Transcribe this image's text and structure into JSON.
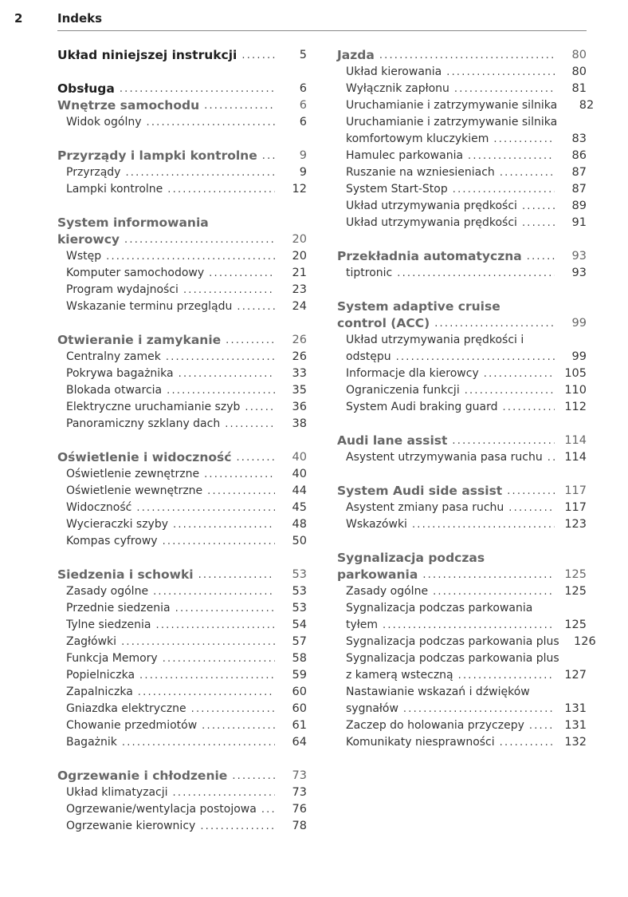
{
  "header": {
    "page_number": "2",
    "title": "Indeks"
  },
  "left": [
    {
      "type": "h1",
      "lines": [
        "Układ niniejszej instrukcji"
      ],
      "page": "5"
    },
    {
      "type": "gap"
    },
    {
      "type": "h1",
      "lines": [
        "Obsługa"
      ],
      "page": "6"
    },
    {
      "type": "h2",
      "lines": [
        "Wnętrze samochodu"
      ],
      "page": "6"
    },
    {
      "type": "item",
      "lines": [
        "Widok ogólny"
      ],
      "page": "6"
    },
    {
      "type": "gap"
    },
    {
      "type": "h2",
      "lines": [
        "Przyrządy i lampki kontrolne"
      ],
      "page": "9"
    },
    {
      "type": "item",
      "lines": [
        "Przyrządy"
      ],
      "page": "9"
    },
    {
      "type": "item",
      "lines": [
        "Lampki kontrolne"
      ],
      "page": "12"
    },
    {
      "type": "gap"
    },
    {
      "type": "h2",
      "lines": [
        "System informowania",
        "kierowcy"
      ],
      "page": "20"
    },
    {
      "type": "item",
      "lines": [
        "Wstęp"
      ],
      "page": "20"
    },
    {
      "type": "item",
      "lines": [
        "Komputer samochodowy"
      ],
      "page": "21"
    },
    {
      "type": "item",
      "lines": [
        "Program wydajności"
      ],
      "page": "23"
    },
    {
      "type": "item",
      "lines": [
        "Wskazanie terminu przeglądu"
      ],
      "page": "24"
    },
    {
      "type": "gap"
    },
    {
      "type": "h2",
      "lines": [
        "Otwieranie i zamykanie"
      ],
      "page": "26"
    },
    {
      "type": "item",
      "lines": [
        "Centralny zamek"
      ],
      "page": "26"
    },
    {
      "type": "item",
      "lines": [
        "Pokrywa bagażnika"
      ],
      "page": "33"
    },
    {
      "type": "item",
      "lines": [
        "Blokada otwarcia"
      ],
      "page": "35"
    },
    {
      "type": "item",
      "lines": [
        "Elektryczne uruchamianie szyb"
      ],
      "page": "36"
    },
    {
      "type": "item",
      "lines": [
        "Panoramiczny szklany dach"
      ],
      "page": "38"
    },
    {
      "type": "gap"
    },
    {
      "type": "h2",
      "lines": [
        "Oświetlenie i widoczność"
      ],
      "page": "40"
    },
    {
      "type": "item",
      "lines": [
        "Oświetlenie zewnętrzne"
      ],
      "page": "40"
    },
    {
      "type": "item",
      "lines": [
        "Oświetlenie wewnętrzne"
      ],
      "page": "44"
    },
    {
      "type": "item",
      "lines": [
        "Widoczność"
      ],
      "page": "45"
    },
    {
      "type": "item",
      "lines": [
        "Wycieraczki szyby"
      ],
      "page": "48"
    },
    {
      "type": "item",
      "lines": [
        "Kompas cyfrowy"
      ],
      "page": "50"
    },
    {
      "type": "gap"
    },
    {
      "type": "h2",
      "lines": [
        "Siedzenia i schowki"
      ],
      "page": "53"
    },
    {
      "type": "item",
      "lines": [
        "Zasady ogólne"
      ],
      "page": "53"
    },
    {
      "type": "item",
      "lines": [
        "Przednie siedzenia"
      ],
      "page": "53"
    },
    {
      "type": "item",
      "lines": [
        "Tylne siedzenia"
      ],
      "page": "54"
    },
    {
      "type": "item",
      "lines": [
        "Zagłówki"
      ],
      "page": "57"
    },
    {
      "type": "item",
      "lines": [
        "Funkcja Memory"
      ],
      "page": "58"
    },
    {
      "type": "item",
      "lines": [
        "Popielniczka"
      ],
      "page": "59"
    },
    {
      "type": "item",
      "lines": [
        "Zapalniczka"
      ],
      "page": "60"
    },
    {
      "type": "item",
      "lines": [
        "Gniazdka elektryczne"
      ],
      "page": "60"
    },
    {
      "type": "item",
      "lines": [
        "Chowanie przedmiotów"
      ],
      "page": "61"
    },
    {
      "type": "item",
      "lines": [
        "Bagażnik"
      ],
      "page": "64"
    },
    {
      "type": "gap"
    },
    {
      "type": "h2",
      "lines": [
        "Ogrzewanie i chłodzenie"
      ],
      "page": "73"
    },
    {
      "type": "item",
      "lines": [
        "Układ klimatyzacji"
      ],
      "page": "73"
    },
    {
      "type": "item",
      "lines": [
        "Ogrzewanie/wentylacja postojowa"
      ],
      "page": "76"
    },
    {
      "type": "item",
      "lines": [
        "Ogrzewanie kierownicy"
      ],
      "page": "78"
    }
  ],
  "right": [
    {
      "type": "h2",
      "lines": [
        "Jazda"
      ],
      "page": "80"
    },
    {
      "type": "item",
      "lines": [
        "Układ kierowania"
      ],
      "page": "80"
    },
    {
      "type": "item",
      "lines": [
        "Wyłącznik zapłonu"
      ],
      "page": "81"
    },
    {
      "type": "item",
      "lines": [
        "Uruchamianie i zatrzymywanie silnika"
      ],
      "page": "82",
      "nodots": true
    },
    {
      "type": "item",
      "lines": [
        "Uruchamianie i zatrzymywanie silnika",
        "komfortowym kluczykiem"
      ],
      "page": "83"
    },
    {
      "type": "item",
      "lines": [
        "Hamulec parkowania"
      ],
      "page": "86"
    },
    {
      "type": "item",
      "lines": [
        "Ruszanie na wzniesieniach"
      ],
      "page": "87"
    },
    {
      "type": "item",
      "lines": [
        "System Start-Stop"
      ],
      "page": "87"
    },
    {
      "type": "item",
      "lines": [
        "Układ utrzymywania prędkości"
      ],
      "page": "89"
    },
    {
      "type": "item",
      "lines": [
        "Układ utrzymywania prędkości"
      ],
      "page": "91"
    },
    {
      "type": "gap"
    },
    {
      "type": "h2",
      "lines": [
        "Przekładnia automatyczna"
      ],
      "page": "93"
    },
    {
      "type": "item",
      "lines": [
        "tiptronic"
      ],
      "page": "93"
    },
    {
      "type": "gap"
    },
    {
      "type": "h2",
      "lines": [
        "System adaptive cruise",
        "control (ACC)"
      ],
      "page": "99"
    },
    {
      "type": "item",
      "lines": [
        "Układ utrzymywania prędkości i",
        "odstępu"
      ],
      "page": "99"
    },
    {
      "type": "item",
      "lines": [
        "Informacje dla kierowcy"
      ],
      "page": "105"
    },
    {
      "type": "item",
      "lines": [
        "Ograniczenia funkcji"
      ],
      "page": "110"
    },
    {
      "type": "item",
      "lines": [
        "System Audi braking guard"
      ],
      "page": "112"
    },
    {
      "type": "gap"
    },
    {
      "type": "h2",
      "lines": [
        "Audi lane assist"
      ],
      "page": "114"
    },
    {
      "type": "item",
      "lines": [
        "Asystent utrzymywania pasa ruchu"
      ],
      "page": "114"
    },
    {
      "type": "gap"
    },
    {
      "type": "h2",
      "lines": [
        "System Audi side assist"
      ],
      "page": "117"
    },
    {
      "type": "item",
      "lines": [
        "Asystent zmiany pasa ruchu"
      ],
      "page": "117"
    },
    {
      "type": "item",
      "lines": [
        "Wskazówki"
      ],
      "page": "123"
    },
    {
      "type": "gap"
    },
    {
      "type": "h2",
      "lines": [
        "Sygnalizacja podczas",
        "parkowania"
      ],
      "page": "125"
    },
    {
      "type": "item",
      "lines": [
        "Zasady ogólne"
      ],
      "page": "125"
    },
    {
      "type": "item",
      "lines": [
        "Sygnalizacja podczas parkowania",
        "tyłem"
      ],
      "page": "125"
    },
    {
      "type": "item",
      "lines": [
        "Sygnalizacja podczas parkowania plus"
      ],
      "page": "126",
      "nodots": true
    },
    {
      "type": "item",
      "lines": [
        "Sygnalizacja podczas parkowania plus",
        "z kamerą wsteczną"
      ],
      "page": "127"
    },
    {
      "type": "item",
      "lines": [
        "Nastawianie wskazań i dźwięków",
        "sygnałów"
      ],
      "page": "131"
    },
    {
      "type": "item",
      "lines": [
        "Zaczep do holowania przyczepy"
      ],
      "page": "131"
    },
    {
      "type": "item",
      "lines": [
        "Komunikaty niesprawności"
      ],
      "page": "132"
    }
  ]
}
